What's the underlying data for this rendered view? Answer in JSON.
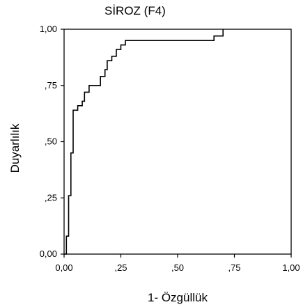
{
  "chart_data": {
    "type": "line",
    "title": "SİROZ (F4)",
    "xlabel": "1- Özgüllük",
    "ylabel": "Duyarlılık",
    "xlim": [
      0,
      1
    ],
    "ylim": [
      0,
      1
    ],
    "x_ticks": [
      0,
      0.25,
      0.5,
      0.75,
      1.0
    ],
    "x_tick_labels": [
      "0,00",
      ",25",
      ",50",
      ",75",
      "1,00"
    ],
    "y_ticks": [
      0,
      0.25,
      0.5,
      0.75,
      1.0
    ],
    "y_tick_labels": [
      "0,00",
      ",25",
      ",50",
      ",75",
      "1,00"
    ],
    "grid": false,
    "series": [
      {
        "name": "",
        "color": "#000000",
        "x": [
          0,
          0.01,
          0.01,
          0.02,
          0.02,
          0.03,
          0.03,
          0.04,
          0.04,
          0.06,
          0.06,
          0.08,
          0.08,
          0.09,
          0.09,
          0.11,
          0.11,
          0.16,
          0.16,
          0.18,
          0.18,
          0.19,
          0.19,
          0.21,
          0.21,
          0.23,
          0.23,
          0.25,
          0.25,
          0.27,
          0.27,
          0.66,
          0.66,
          0.7,
          0.7
        ],
        "y": [
          0,
          0,
          0.08,
          0.08,
          0.26,
          0.26,
          0.45,
          0.45,
          0.64,
          0.64,
          0.66,
          0.66,
          0.68,
          0.68,
          0.72,
          0.72,
          0.75,
          0.75,
          0.79,
          0.79,
          0.82,
          0.82,
          0.86,
          0.86,
          0.88,
          0.88,
          0.91,
          0.91,
          0.93,
          0.93,
          0.95,
          0.95,
          0.97,
          0.97,
          1.0
        ]
      }
    ]
  }
}
